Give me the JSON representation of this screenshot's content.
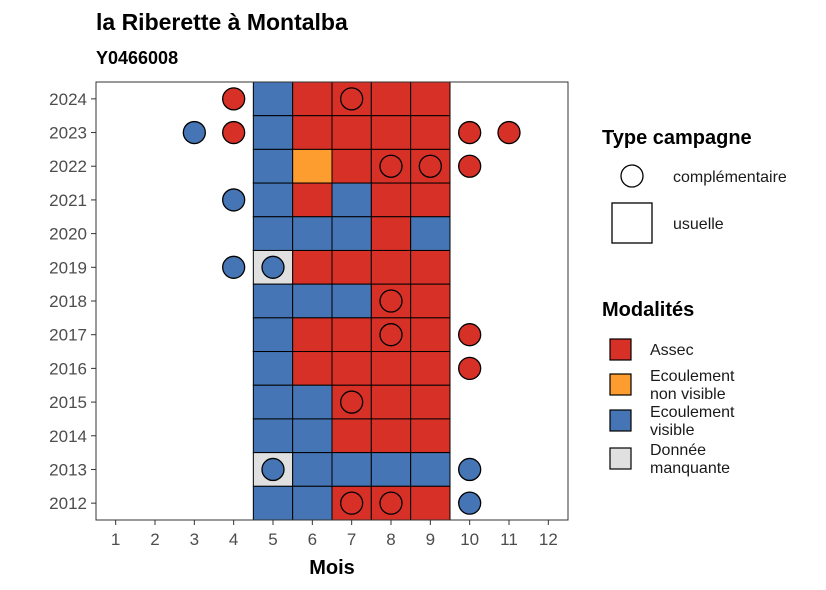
{
  "chart_data": {
    "type": "heatmap",
    "title": "la Riberette à Montalba",
    "subtitle": "Y0466008",
    "xlabel": "Mois",
    "ylabel": "",
    "x_ticks": [
      "1",
      "2",
      "3",
      "4",
      "5",
      "6",
      "7",
      "8",
      "9",
      "10",
      "11",
      "12"
    ],
    "y_ticks": [
      "2012",
      "2013",
      "2014",
      "2015",
      "2016",
      "2017",
      "2018",
      "2019",
      "2020",
      "2021",
      "2022",
      "2023",
      "2024"
    ],
    "xlim": [
      0.5,
      12.5
    ],
    "ylim": [
      2011.5,
      2024.5
    ],
    "colors": {
      "Assec": "#d73027",
      "Ecoulement non visible": "#fd9d2f",
      "Ecoulement visible": "#4575b4",
      "Donnée manquante": "#e0e0e0"
    },
    "legend_type": {
      "title": "Type campagne",
      "items": [
        {
          "key": "complementaire",
          "label": "complémentaire",
          "shape": "circle"
        },
        {
          "key": "usuelle",
          "label": "usuelle",
          "shape": "square"
        }
      ]
    },
    "legend_modalites": {
      "title": "Modalités",
      "items": [
        {
          "key": "Assec",
          "lines": [
            "Assec"
          ]
        },
        {
          "key": "Ecoulement non visible",
          "lines": [
            "Ecoulement",
            "non visible"
          ]
        },
        {
          "key": "Ecoulement visible",
          "lines": [
            "Ecoulement",
            "visible"
          ]
        },
        {
          "key": "Donnée manquante",
          "lines": [
            "Donnée",
            "manquante"
          ]
        }
      ]
    },
    "usuelle": [
      {
        "year": 2024,
        "months": [
          5,
          6,
          7,
          8,
          9
        ],
        "values": [
          "Ecoulement visible",
          "Assec",
          "Assec",
          "Assec",
          "Assec"
        ]
      },
      {
        "year": 2023,
        "months": [
          5,
          6,
          7,
          8,
          9
        ],
        "values": [
          "Ecoulement visible",
          "Assec",
          "Assec",
          "Assec",
          "Assec"
        ]
      },
      {
        "year": 2022,
        "months": [
          5,
          6,
          7,
          8,
          9
        ],
        "values": [
          "Ecoulement visible",
          "Ecoulement non visible",
          "Assec",
          "Assec",
          "Assec"
        ]
      },
      {
        "year": 2021,
        "months": [
          5,
          6,
          7,
          8,
          9
        ],
        "values": [
          "Ecoulement visible",
          "Assec",
          "Ecoulement visible",
          "Assec",
          "Assec"
        ]
      },
      {
        "year": 2020,
        "months": [
          5,
          6,
          7,
          8,
          9
        ],
        "values": [
          "Ecoulement visible",
          "Ecoulement visible",
          "Ecoulement visible",
          "Assec",
          "Ecoulement visible"
        ]
      },
      {
        "year": 2019,
        "months": [
          5,
          6,
          7,
          8,
          9
        ],
        "values": [
          "Donnée manquante",
          "Assec",
          "Assec",
          "Assec",
          "Assec"
        ]
      },
      {
        "year": 2018,
        "months": [
          5,
          6,
          7,
          8,
          9
        ],
        "values": [
          "Ecoulement visible",
          "Ecoulement visible",
          "Ecoulement visible",
          "Assec",
          "Assec"
        ]
      },
      {
        "year": 2017,
        "months": [
          5,
          6,
          7,
          8,
          9
        ],
        "values": [
          "Ecoulement visible",
          "Assec",
          "Assec",
          "Assec",
          "Assec"
        ]
      },
      {
        "year": 2016,
        "months": [
          5,
          6,
          7,
          8,
          9
        ],
        "values": [
          "Ecoulement visible",
          "Assec",
          "Assec",
          "Assec",
          "Assec"
        ]
      },
      {
        "year": 2015,
        "months": [
          5,
          6,
          7,
          8,
          9
        ],
        "values": [
          "Ecoulement visible",
          "Ecoulement visible",
          "Assec",
          "Assec",
          "Assec"
        ]
      },
      {
        "year": 2014,
        "months": [
          5,
          6,
          7,
          8,
          9
        ],
        "values": [
          "Ecoulement visible",
          "Ecoulement visible",
          "Assec",
          "Assec",
          "Assec"
        ]
      },
      {
        "year": 2013,
        "months": [
          5,
          6,
          7,
          8,
          9
        ],
        "values": [
          "Donnée manquante",
          "Ecoulement visible",
          "Ecoulement visible",
          "Ecoulement visible",
          "Ecoulement visible"
        ]
      },
      {
        "year": 2012,
        "months": [
          5,
          6,
          7,
          8,
          9
        ],
        "values": [
          "Ecoulement visible",
          "Ecoulement visible",
          "Assec",
          "Assec",
          "Assec"
        ]
      }
    ],
    "complementaire": [
      {
        "year": 2024,
        "month": 4,
        "value": "Assec"
      },
      {
        "year": 2024,
        "month": 7,
        "value": "Assec"
      },
      {
        "year": 2023,
        "month": 3,
        "value": "Ecoulement visible"
      },
      {
        "year": 2023,
        "month": 4,
        "value": "Assec"
      },
      {
        "year": 2023,
        "month": 10,
        "value": "Assec"
      },
      {
        "year": 2023,
        "month": 11,
        "value": "Assec"
      },
      {
        "year": 2022,
        "month": 8,
        "value": "Assec"
      },
      {
        "year": 2022,
        "month": 9,
        "value": "Assec"
      },
      {
        "year": 2022,
        "month": 10,
        "value": "Assec"
      },
      {
        "year": 2021,
        "month": 4,
        "value": "Ecoulement visible"
      },
      {
        "year": 2019,
        "month": 4,
        "value": "Ecoulement visible"
      },
      {
        "year": 2019,
        "month": 5,
        "value": "Ecoulement visible"
      },
      {
        "year": 2018,
        "month": 8,
        "value": "Assec"
      },
      {
        "year": 2017,
        "month": 8,
        "value": "Assec"
      },
      {
        "year": 2017,
        "month": 10,
        "value": "Assec"
      },
      {
        "year": 2016,
        "month": 10,
        "value": "Assec"
      },
      {
        "year": 2015,
        "month": 7,
        "value": "Assec"
      },
      {
        "year": 2013,
        "month": 5,
        "value": "Ecoulement visible"
      },
      {
        "year": 2013,
        "month": 10,
        "value": "Ecoulement visible"
      },
      {
        "year": 2012,
        "month": 7,
        "value": "Assec"
      },
      {
        "year": 2012,
        "month": 8,
        "value": "Assec"
      },
      {
        "year": 2012,
        "month": 10,
        "value": "Ecoulement visible"
      }
    ]
  }
}
